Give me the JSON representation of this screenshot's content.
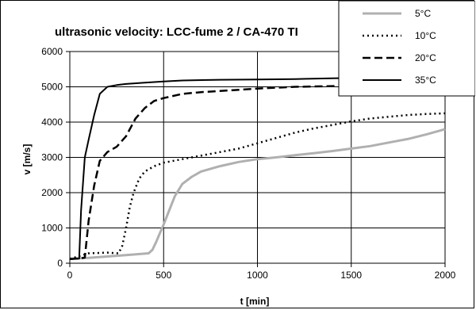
{
  "chart_data": {
    "type": "line",
    "title": "ultrasonic velocity: LCC-fume 2 / CA-470 TI",
    "xlabel": "t [min]",
    "ylabel": "v [m/s]",
    "xlim": [
      0,
      2000
    ],
    "ylim": [
      0,
      6000
    ],
    "xticks": [
      0,
      500,
      1000,
      1500,
      2000
    ],
    "yticks": [
      0,
      1000,
      2000,
      3000,
      4000,
      5000,
      6000
    ],
    "grid": true,
    "legend_position": "top-right",
    "series": [
      {
        "name": "5°C",
        "color": "#b0b0b0",
        "dash": "solid",
        "x": [
          0,
          100,
          200,
          300,
          420,
          440,
          460,
          480,
          500,
          530,
          560,
          600,
          650,
          700,
          800,
          900,
          1000,
          1100,
          1200,
          1300,
          1400,
          1500,
          1600,
          1700,
          1800,
          1900,
          2000
        ],
        "y": [
          130,
          150,
          190,
          230,
          280,
          380,
          600,
          850,
          1100,
          1500,
          1900,
          2250,
          2450,
          2600,
          2750,
          2870,
          2950,
          3000,
          3060,
          3120,
          3180,
          3250,
          3320,
          3420,
          3520,
          3650,
          3800
        ]
      },
      {
        "name": "10°C",
        "color": "#000000",
        "dash": "dotted",
        "x": [
          0,
          60,
          100,
          200,
          260,
          280,
          300,
          320,
          340,
          370,
          400,
          450,
          500,
          600,
          700,
          800,
          900,
          1000,
          1100,
          1200,
          1300,
          1400,
          1500,
          1600,
          1700,
          1800,
          1900,
          2000
        ],
        "y": [
          120,
          220,
          280,
          300,
          280,
          500,
          1000,
          1600,
          2000,
          2400,
          2600,
          2750,
          2850,
          2950,
          3050,
          3150,
          3250,
          3400,
          3550,
          3700,
          3820,
          3920,
          4020,
          4100,
          4150,
          4200,
          4230,
          4250
        ]
      },
      {
        "name": "20°C",
        "color": "#000000",
        "dash": "dashed",
        "x": [
          0,
          60,
          80,
          100,
          130,
          160,
          200,
          250,
          300,
          350,
          400,
          450,
          500,
          600,
          700,
          800,
          1000,
          1200,
          1400,
          1600,
          1800,
          2000
        ],
        "y": [
          120,
          140,
          160,
          1200,
          2200,
          2900,
          3150,
          3300,
          3600,
          4100,
          4400,
          4600,
          4680,
          4800,
          4850,
          4880,
          4950,
          5000,
          5020,
          5050,
          5070,
          5080
        ]
      },
      {
        "name": "35°C",
        "color": "#000000",
        "dash": "solid",
        "x": [
          0,
          50,
          60,
          80,
          100,
          130,
          160,
          200,
          250,
          300,
          400,
          500,
          600,
          800,
          1000,
          1200,
          1400,
          1600,
          1800,
          2000
        ],
        "y": [
          120,
          130,
          1500,
          3000,
          3500,
          4200,
          4800,
          5000,
          5050,
          5080,
          5120,
          5150,
          5180,
          5200,
          5210,
          5220,
          5240,
          5260,
          5280,
          5300
        ]
      }
    ]
  }
}
